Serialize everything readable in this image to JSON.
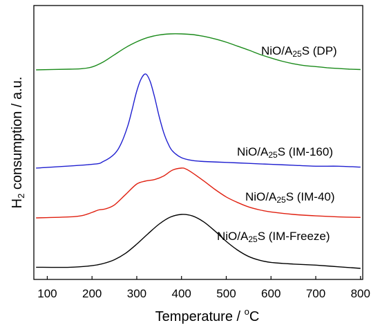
{
  "chart_data": {
    "type": "line",
    "xlabel": "Temperature / °C",
    "ylabel": "H₂ consumption / a.u.",
    "xlim": [
      70,
      805
    ],
    "x_ticks": [
      "100",
      "200",
      "300",
      "400",
      "500",
      "600",
      "700",
      "800"
    ],
    "x_tick_values": [
      100,
      200,
      300,
      400,
      500,
      600,
      700,
      800
    ],
    "y_ticks_shown": false,
    "grid": false,
    "legend": "none (labels placed beside each curve)",
    "series": [
      {
        "name": "NiO/A25S (DP)",
        "color": "#1a8a1a",
        "x": [
          75,
          150,
          175,
          200,
          225,
          250,
          275,
          300,
          325,
          350,
          375,
          400,
          425,
          450,
          475,
          500,
          525,
          550,
          575,
          600,
          625,
          650,
          675,
          700,
          725,
          750,
          775,
          800
        ],
        "y": [
          0.0,
          0.02,
          0.03,
          0.08,
          0.22,
          0.42,
          0.62,
          0.78,
          0.9,
          0.97,
          1.0,
          1.0,
          0.98,
          0.93,
          0.86,
          0.77,
          0.66,
          0.55,
          0.43,
          0.33,
          0.24,
          0.17,
          0.12,
          0.09,
          0.06,
          0.04,
          0.02,
          0.01
        ]
      },
      {
        "name": "NiO/A25S (IM-160)",
        "color": "#1f1fd0",
        "x": [
          75,
          200,
          225,
          250,
          265,
          280,
          290,
          300,
          310,
          320,
          330,
          340,
          350,
          360,
          370,
          380,
          400,
          425,
          450,
          500,
          550,
          600,
          650,
          700,
          750,
          800
        ],
        "y": [
          0.0,
          0.04,
          0.07,
          0.15,
          0.26,
          0.45,
          0.63,
          0.82,
          0.95,
          1.0,
          0.92,
          0.75,
          0.55,
          0.38,
          0.26,
          0.18,
          0.11,
          0.08,
          0.07,
          0.06,
          0.05,
          0.04,
          0.03,
          0.02,
          0.02,
          0.01
        ]
      },
      {
        "name": "NiO/A25S (IM-40)",
        "color": "#e02010",
        "x": [
          75,
          150,
          180,
          200,
          215,
          230,
          250,
          275,
          300,
          320,
          340,
          360,
          380,
          400,
          410,
          425,
          450,
          475,
          500,
          525,
          550,
          575,
          600,
          650,
          700,
          750,
          800
        ],
        "y": [
          0.0,
          0.02,
          0.05,
          0.11,
          0.16,
          0.18,
          0.26,
          0.47,
          0.68,
          0.74,
          0.77,
          0.84,
          0.96,
          1.0,
          0.98,
          0.9,
          0.74,
          0.57,
          0.42,
          0.31,
          0.22,
          0.16,
          0.12,
          0.07,
          0.04,
          0.02,
          0.01
        ]
      },
      {
        "name": "NiO/A25S (IM-Freeze)",
        "color": "#000000",
        "x": [
          75,
          150,
          200,
          225,
          250,
          275,
          300,
          325,
          350,
          375,
          400,
          425,
          450,
          475,
          500,
          525,
          550,
          575,
          600,
          650,
          700,
          750,
          800
        ],
        "y": [
          0.02,
          0.02,
          0.05,
          0.09,
          0.16,
          0.28,
          0.45,
          0.64,
          0.82,
          0.95,
          1.0,
          0.97,
          0.86,
          0.69,
          0.5,
          0.34,
          0.22,
          0.15,
          0.11,
          0.08,
          0.06,
          0.03,
          0.0
        ]
      }
    ]
  },
  "labels": {
    "dp": {
      "prefix": "NiO/A",
      "sub": "25",
      "suffix": "S (DP)"
    },
    "im160": {
      "prefix": "NiO/A",
      "sub": "25",
      "suffix": "S (IM-160)"
    },
    "im40": {
      "prefix": "NiO/A",
      "sub": "25",
      "suffix": "S (IM-40)"
    },
    "freeze": {
      "prefix": "NiO/A",
      "sub": "25",
      "suffix": "S (IM-Freeze)"
    },
    "xaxis": {
      "main": "Temperature / ",
      "sup": "o",
      "unit": "C"
    },
    "yaxis": {
      "pre": "H",
      "sub": "2",
      "post": " consumption / a.u."
    }
  }
}
